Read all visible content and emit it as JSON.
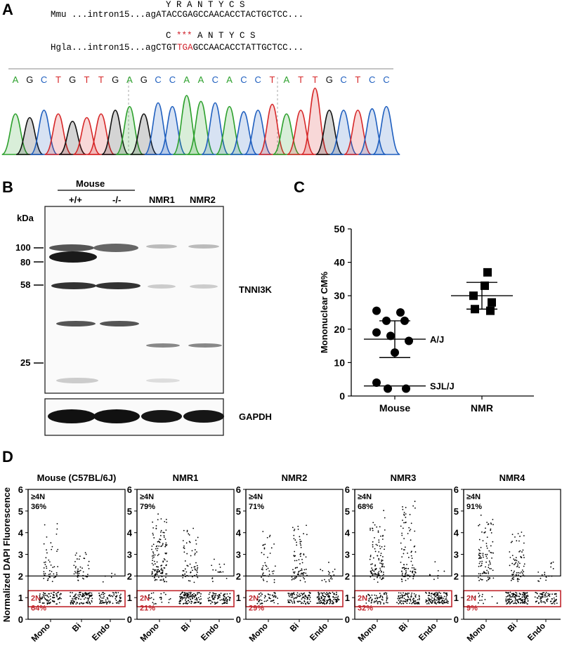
{
  "panels": {
    "a": "A",
    "b": "B",
    "c": "C",
    "d": "D"
  },
  "seq": {
    "aa_mmu": "Y R A N T Y C S",
    "mmu_prefix": "Mmu ...intron15...ag",
    "mmu_seq": "ATACCGAGCCAACACCTACTGCTCC...",
    "aa_hgla_pre": "C ",
    "aa_hgla_stop": "***",
    "aa_hgla_post": " A N T Y C S",
    "hgla_prefix": "Hgla...intron15...ag",
    "hgla_pre": "CTGT",
    "hgla_stop": "TGA",
    "hgla_post": "GCCAACACCTATTGCTCC...",
    "trace_bases": [
      "A",
      "G",
      "C",
      "T",
      "G",
      "T",
      "T",
      "G",
      "A",
      "G",
      "C",
      "C",
      "A",
      "A",
      "C",
      "A",
      "C",
      "C",
      "T",
      "A",
      "T",
      "T",
      "G",
      "C",
      "T",
      "C",
      "C"
    ],
    "colors": {
      "A": "#2ca02c",
      "C": "#1f5fbf",
      "G": "#111111",
      "T": "#d62728"
    }
  },
  "blot": {
    "group_label": "Mouse",
    "lanes": [
      "+/+",
      "-/-",
      "NMR1",
      "NMR2"
    ],
    "kda_label": "kDa",
    "markers": [
      "100",
      "80",
      "58",
      "25"
    ],
    "target": "TNNI3K",
    "control": "GAPDH"
  },
  "chart_data": [
    {
      "type": "scatter",
      "panel": "C",
      "ylabel": "Mononuclear CM%",
      "categories": [
        "Mouse",
        "NMR"
      ],
      "ylim": [
        0,
        50
      ],
      "yticks": [
        0,
        10,
        20,
        30,
        40,
        50
      ],
      "series": [
        {
          "name": "Mouse",
          "marker": "circle",
          "values": [
            25.5,
            25,
            22.5,
            22.5,
            19,
            18,
            16.5,
            13,
            4,
            2.2,
            2.2
          ]
        },
        {
          "name": "NMR",
          "marker": "square",
          "values": [
            37,
            33,
            30,
            28,
            26,
            25.5
          ]
        }
      ],
      "summary": [
        {
          "category": "Mouse",
          "mean": 17,
          "upper": 22.5,
          "lower": 11.5
        },
        {
          "category": "NMR",
          "mean": 30,
          "upper": 34,
          "lower": 26
        }
      ],
      "annotations": [
        {
          "text": "A/J",
          "y": 17
        },
        {
          "text": "SJL/J",
          "y": 3
        }
      ]
    },
    {
      "type": "scatter",
      "panel": "D",
      "ylabel": "Normalized DAPI Fluorescence",
      "ylim": [
        0,
        6
      ],
      "yticks": [
        0,
        1,
        2,
        3,
        4,
        5,
        6
      ],
      "categories": [
        "Mono",
        "Bi",
        "Endo"
      ],
      "gate_high_label": "≥4N",
      "gate_low_label": "2N",
      "plots": [
        {
          "title": "Mouse (C57BL/6J)",
          "high_pct": "36%",
          "low_pct": "64%",
          "counts": [
            130,
            150,
            80
          ],
          "spread": [
            2.5,
            1.3,
            0.3
          ],
          "mono_high": 0.38,
          "bi_high": 0.25,
          "endo_high": 0.02
        },
        {
          "title": "NMR1",
          "high_pct": "79%",
          "low_pct": "21%",
          "counts": [
            160,
            180,
            100
          ],
          "spread": [
            2.8,
            2.2,
            1.2
          ],
          "mono_high": 0.78,
          "bi_high": 0.45,
          "endo_high": 0.2
        },
        {
          "title": "NMR2",
          "high_pct": "71%",
          "low_pct": "29%",
          "counts": [
            90,
            160,
            140
          ],
          "spread": [
            2.2,
            2.4,
            0.5
          ],
          "mono_high": 0.55,
          "bi_high": 0.45,
          "endo_high": 0.12
        },
        {
          "title": "NMR3",
          "high_pct": "68%",
          "low_pct": "32%",
          "counts": [
            170,
            190,
            130
          ],
          "spread": [
            3.2,
            3.6,
            0.6
          ],
          "mono_high": 0.6,
          "bi_high": 0.5,
          "endo_high": 0.08
        },
        {
          "title": "NMR4",
          "high_pct": "91%",
          "low_pct": "9%",
          "counts": [
            110,
            200,
            90
          ],
          "spread": [
            2.8,
            2.2,
            0.8
          ],
          "mono_high": 0.85,
          "bi_high": 0.4,
          "endo_high": 0.18
        }
      ]
    }
  ]
}
